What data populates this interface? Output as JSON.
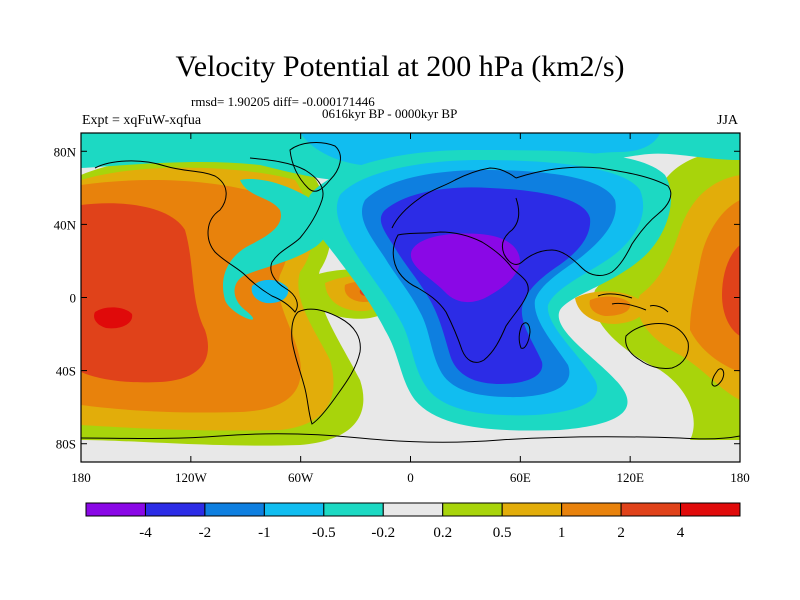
{
  "title": "Velocity Potential at 200 hPa (km2/s)",
  "stats": "rmsd= 1.90205 diff= -0.000171446",
  "period": "0616kyr BP - 0000kyr BP",
  "experiment": "Expt = xqFuW-xqfua",
  "season": "JJA",
  "map": {
    "projection": "cylindrical equidistant",
    "lon_range": [
      -180,
      180
    ],
    "lat_range": [
      -90,
      90
    ],
    "x_ticks": [
      {
        "lon": -180,
        "label": "180"
      },
      {
        "lon": -120,
        "label": "120W"
      },
      {
        "lon": -60,
        "label": "60W"
      },
      {
        "lon": 0,
        "label": "0"
      },
      {
        "lon": 60,
        "label": "60E"
      },
      {
        "lon": 120,
        "label": "120E"
      },
      {
        "lon": 180,
        "label": "180"
      }
    ],
    "y_ticks": [
      {
        "lat": 80,
        "label": "80N"
      },
      {
        "lat": 40,
        "label": "40N"
      },
      {
        "lat": 0,
        "label": "0"
      },
      {
        "lat": -40,
        "label": "40S"
      },
      {
        "lat": -80,
        "label": "80S"
      }
    ]
  },
  "colorbar": {
    "levels": [
      "-4",
      "-2",
      "-1",
      "-0.5",
      "-0.2",
      "0.2",
      "0.5",
      "1",
      "2",
      "4"
    ],
    "colors": [
      "#8a08e6",
      "#2c2ce6",
      "#0e7fe0",
      "#11bdf0",
      "#1cd9c3",
      "#e8e8e8",
      "#a8d40b",
      "#e2ad0a",
      "#e8820c",
      "#e0421a",
      "#e00a0a"
    ]
  }
}
